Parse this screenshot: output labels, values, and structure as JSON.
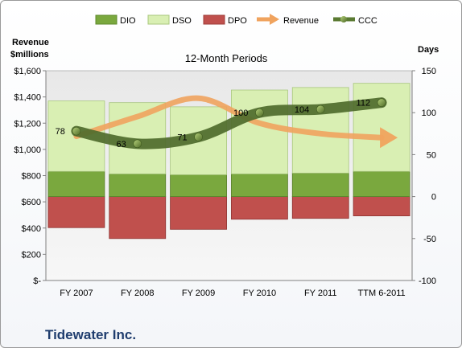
{
  "chart_data": {
    "type": "bar",
    "title": "12-Month Periods",
    "footer": "Tidewater Inc.",
    "categories": [
      "FY 2007",
      "FY 2008",
      "FY 2009",
      "FY 2010",
      "FY 2011",
      "TTM 6-2011"
    ],
    "left_axis": {
      "title_line1": "Revenue",
      "title_line2": "$millions",
      "ylim": [
        0,
        1600
      ],
      "ticks": [
        0,
        200,
        400,
        600,
        800,
        1000,
        1200,
        1400,
        1600
      ],
      "tick_labels": [
        "$-",
        "$200",
        "$400",
        "$600",
        "$800",
        "$1,000",
        "$1,200",
        "$1,400",
        "$1,600"
      ]
    },
    "right_axis": {
      "title": "Days",
      "ylim": [
        -100,
        150
      ],
      "ticks": [
        -100,
        -50,
        0,
        50,
        100,
        150
      ],
      "tick_labels": [
        "-100",
        "-50",
        "0",
        "50",
        "100",
        "150"
      ]
    },
    "series": [
      {
        "name": "DIO",
        "axis": "right",
        "values": [
          30,
          27,
          26,
          27,
          28,
          30
        ],
        "color": "#7aa83e"
      },
      {
        "name": "DSO",
        "axis": "right",
        "values": [
          84,
          85,
          81,
          100,
          102,
          105
        ],
        "color": "#d9efb3"
      },
      {
        "name": "DPO",
        "axis": "right",
        "values": [
          -37,
          -50,
          -39,
          -27,
          -26,
          -23
        ],
        "color": "#c0504d"
      },
      {
        "name": "Revenue",
        "axis": "left",
        "values": [
          1100,
          1250,
          1390,
          1200,
          1120,
          1090
        ],
        "color": "#f0a35e"
      },
      {
        "name": "CCC",
        "axis": "right",
        "values": [
          78,
          63,
          71,
          100,
          104,
          112
        ],
        "labels": [
          "78",
          "63",
          "71",
          "100",
          "104",
          "112"
        ],
        "color": "#5a7a32"
      }
    ],
    "legend_position": "top",
    "grid": false
  }
}
